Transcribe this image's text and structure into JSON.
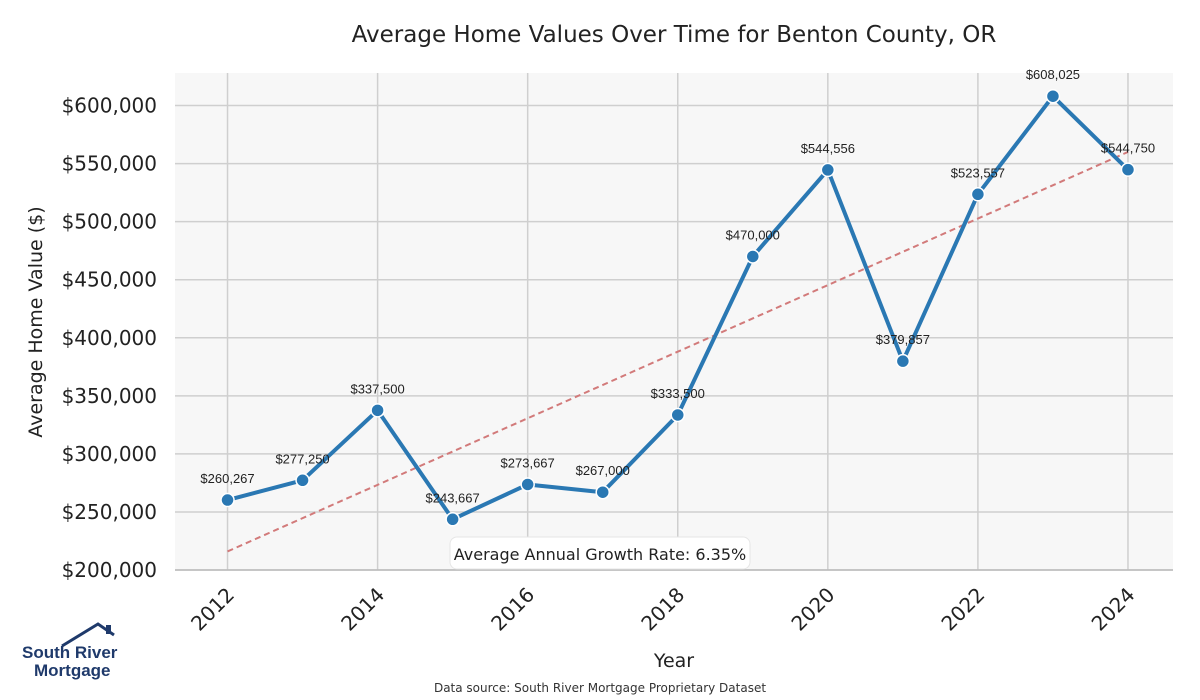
{
  "chart_data": {
    "type": "line",
    "title": "Average Home Values Over Time for Benton County, OR",
    "xlabel": "Year",
    "ylabel": "Average Home Value ($)",
    "x": [
      2012,
      2013,
      2014,
      2015,
      2016,
      2017,
      2018,
      2019,
      2020,
      2021,
      2022,
      2023,
      2024
    ],
    "series": [
      {
        "values": [
          260267,
          277250,
          337500,
          243667,
          273667,
          267000,
          333500,
          470000,
          544556,
          379857,
          523557,
          608025,
          544750
        ],
        "labels": [
          "$260,267",
          "$277,250",
          "$337,500",
          "$243,667",
          "$273,667",
          "$267,000",
          "$333,500",
          "$470,000",
          "$544,556",
          "$379,857",
          "$523,557",
          "$608,025",
          "$544,750"
        ],
        "color": "#2a78b3"
      }
    ],
    "trendline": {
      "start": 216000,
      "end": 560000,
      "color": "#d27a7a",
      "style": "dashed"
    },
    "xticks": [
      "2012",
      "2014",
      "2016",
      "2018",
      "2020",
      "2022",
      "2024"
    ],
    "yticks": [
      {
        "value": 200000,
        "label": "$200,000"
      },
      {
        "value": 250000,
        "label": "$250,000"
      },
      {
        "value": 300000,
        "label": "$300,000"
      },
      {
        "value": 350000,
        "label": "$350,000"
      },
      {
        "value": 400000,
        "label": "$400,000"
      },
      {
        "value": 450000,
        "label": "$450,000"
      },
      {
        "value": 500000,
        "label": "$500,000"
      },
      {
        "value": 550000,
        "label": "$550,000"
      },
      {
        "value": 600000,
        "label": "$600,000"
      }
    ],
    "xlim": [
      2011.3,
      2024.6
    ],
    "ylim": [
      200000,
      628000
    ],
    "grid": true,
    "annotation": "Average Annual Growth Rate: 6.35%"
  },
  "source_text": "Data source: South River Mortgage Proprietary Dataset",
  "logo": {
    "line1": "South River",
    "line2": "Mortgage",
    "color": "#1f3a6b"
  }
}
